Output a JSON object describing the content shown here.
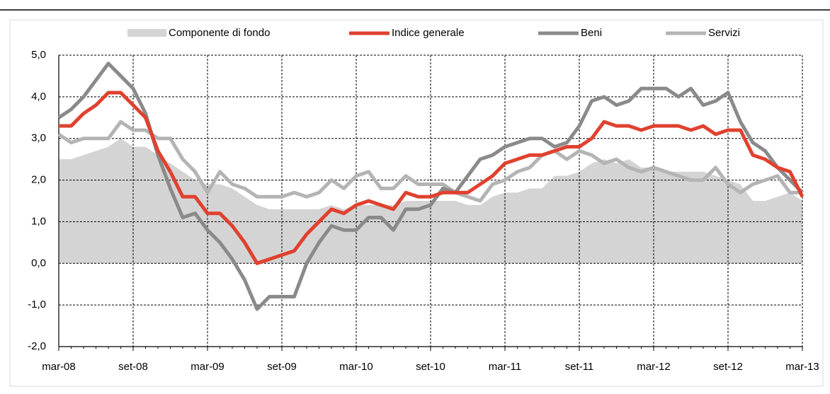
{
  "chart_data": {
    "type": "line",
    "categories": [
      "mar-08",
      null,
      null,
      null,
      null,
      null,
      "set-08",
      null,
      null,
      null,
      null,
      null,
      "mar-09",
      null,
      null,
      null,
      null,
      null,
      "set-09",
      null,
      null,
      null,
      null,
      null,
      "mar-10",
      null,
      null,
      null,
      null,
      null,
      "set-10",
      null,
      null,
      null,
      null,
      null,
      "mar-11",
      null,
      null,
      null,
      null,
      null,
      "set-11",
      null,
      null,
      null,
      null,
      null,
      "mar-12",
      null,
      null,
      null,
      null,
      null,
      "set-12",
      null,
      null,
      null,
      null,
      null,
      "mar-13"
    ],
    "series": [
      {
        "name": "Componente di fondo",
        "color": "#d4d4d4",
        "kind": "area",
        "values": [
          2.5,
          2.5,
          2.6,
          2.7,
          2.8,
          3.0,
          2.8,
          2.8,
          2.6,
          2.4,
          2.2,
          2.0,
          1.9,
          1.9,
          1.8,
          1.6,
          1.4,
          1.3,
          1.3,
          1.3,
          1.3,
          1.3,
          1.4,
          1.3,
          1.4,
          1.4,
          1.4,
          1.4,
          1.5,
          1.5,
          1.5,
          1.5,
          1.5,
          1.4,
          1.4,
          1.6,
          1.7,
          1.7,
          1.8,
          1.8,
          2.1,
          2.1,
          2.2,
          2.4,
          2.5,
          2.4,
          2.5,
          2.3,
          2.3,
          2.2,
          2.2,
          2.2,
          2.2,
          2.1,
          2.0,
          1.9,
          1.5,
          1.5,
          1.6,
          1.7,
          1.5
        ]
      },
      {
        "name": "Indice generale",
        "color": "#e0412f",
        "kind": "line",
        "values": [
          3.3,
          3.3,
          3.6,
          3.8,
          4.1,
          4.1,
          3.8,
          3.5,
          2.7,
          2.2,
          1.6,
          1.6,
          1.2,
          1.2,
          0.9,
          0.5,
          0.0,
          0.1,
          0.2,
          0.3,
          0.7,
          1.0,
          1.3,
          1.2,
          1.4,
          1.5,
          1.4,
          1.3,
          1.7,
          1.6,
          1.6,
          1.7,
          1.7,
          1.7,
          1.9,
          2.1,
          2.4,
          2.5,
          2.6,
          2.6,
          2.7,
          2.8,
          2.8,
          3.0,
          3.4,
          3.3,
          3.3,
          3.2,
          3.3,
          3.3,
          3.3,
          3.2,
          3.3,
          3.1,
          3.2,
          3.2,
          2.6,
          2.5,
          2.3,
          2.2,
          1.6
        ]
      },
      {
        "name": "Beni",
        "color": "#8a8a8a",
        "kind": "line",
        "values": [
          3.5,
          3.7,
          4.0,
          4.4,
          4.8,
          4.5,
          4.2,
          3.6,
          2.6,
          1.8,
          1.1,
          1.2,
          0.8,
          0.5,
          0.1,
          -0.4,
          -1.1,
          -0.8,
          -0.8,
          -0.8,
          0.0,
          0.5,
          0.9,
          0.8,
          0.8,
          1.1,
          1.1,
          0.8,
          1.3,
          1.3,
          1.4,
          1.8,
          1.7,
          2.1,
          2.5,
          2.6,
          2.8,
          2.9,
          3.0,
          3.0,
          2.8,
          2.9,
          3.3,
          3.9,
          4.0,
          3.8,
          3.9,
          4.2,
          4.2,
          4.2,
          4.0,
          4.2,
          3.8,
          3.9,
          4.1,
          3.4,
          2.9,
          2.7,
          2.3,
          2.0,
          1.7
        ]
      },
      {
        "name": "Servizi",
        "color": "#b4b4b4",
        "kind": "line",
        "values": [
          3.1,
          2.9,
          3.0,
          3.0,
          3.0,
          3.4,
          3.2,
          3.2,
          3.0,
          3.0,
          2.5,
          2.2,
          1.7,
          2.2,
          1.9,
          1.8,
          1.6,
          1.6,
          1.6,
          1.7,
          1.6,
          1.7,
          2.0,
          1.8,
          2.1,
          2.2,
          1.8,
          1.8,
          2.1,
          1.9,
          1.9,
          1.9,
          1.7,
          1.6,
          1.5,
          1.9,
          2.0,
          2.2,
          2.3,
          2.6,
          2.7,
          2.5,
          2.7,
          2.6,
          2.4,
          2.5,
          2.3,
          2.2,
          2.3,
          2.2,
          2.1,
          2.0,
          2.0,
          2.3,
          1.9,
          1.7,
          1.9,
          2.0,
          2.1,
          1.7,
          1.7
        ]
      }
    ],
    "ylim": [
      -2,
      5
    ],
    "yticks": [
      {
        "value": -2,
        "label": "-2,0"
      },
      {
        "value": -1,
        "label": "-1,0"
      },
      {
        "value": 0,
        "label": "0,0"
      },
      {
        "value": 1,
        "label": "1,0"
      },
      {
        "value": 2,
        "label": "2,0"
      },
      {
        "value": 3,
        "label": "3,0"
      },
      {
        "value": 4,
        "label": "4,0"
      },
      {
        "value": 5,
        "label": "5,0"
      }
    ],
    "grid": true
  }
}
